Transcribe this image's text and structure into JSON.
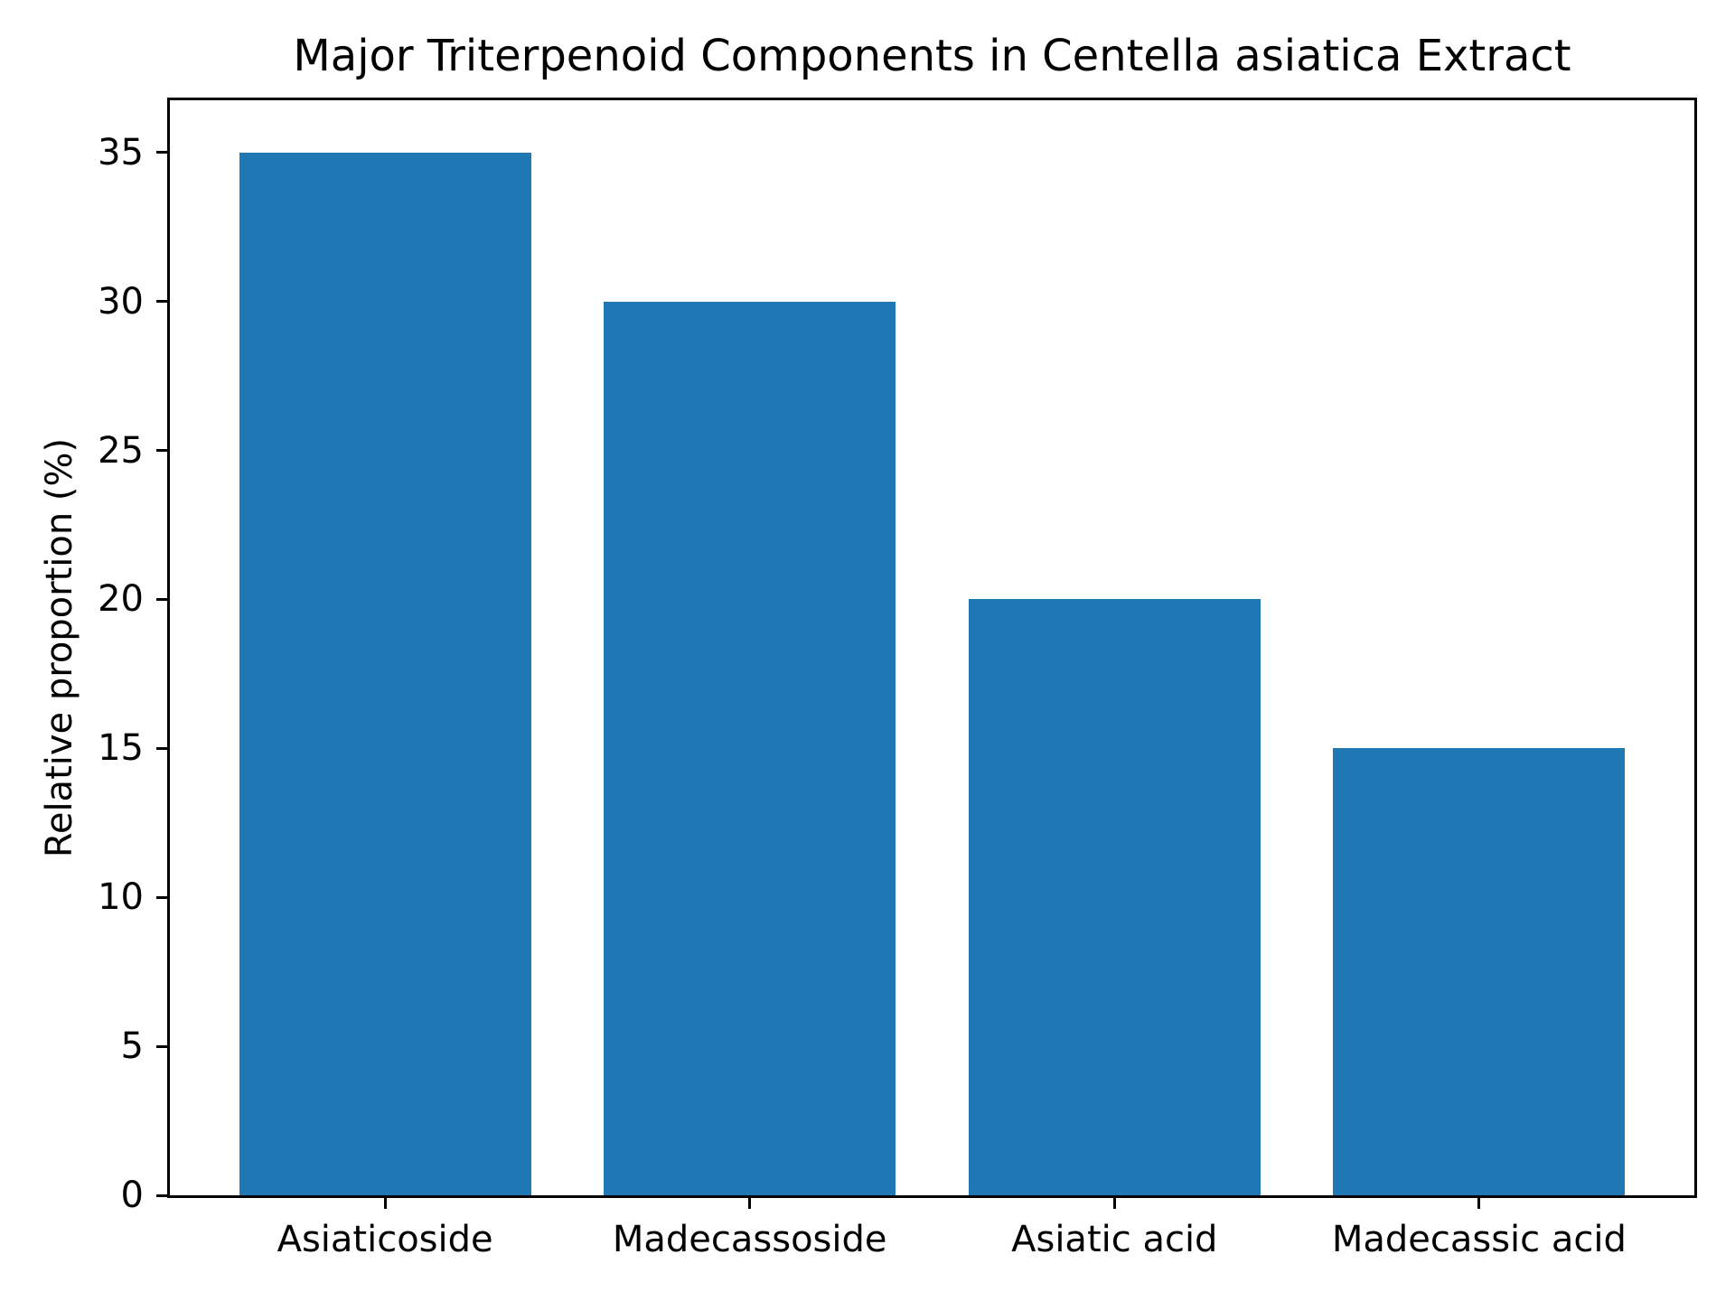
{
  "chart_data": {
    "type": "bar",
    "title": "Major Triterpenoid Components in Centella asiatica Extract",
    "categories": [
      "Asiaticoside",
      "Madecassoside",
      "Asiatic acid",
      "Madecassic acid"
    ],
    "values": [
      35,
      30,
      20,
      15
    ],
    "xlabel": "",
    "ylabel": "Relative proportion (%)",
    "ylim": [
      0,
      36.75
    ],
    "yticks": [
      0,
      5,
      10,
      15,
      20,
      25,
      30,
      35
    ],
    "bar_color": "#1f77b4",
    "bar_width_fraction": 0.8,
    "x_margin": 0.05,
    "axis_color": "#000000",
    "background_color": "#ffffff",
    "grid": false,
    "legend_position": "none"
  }
}
